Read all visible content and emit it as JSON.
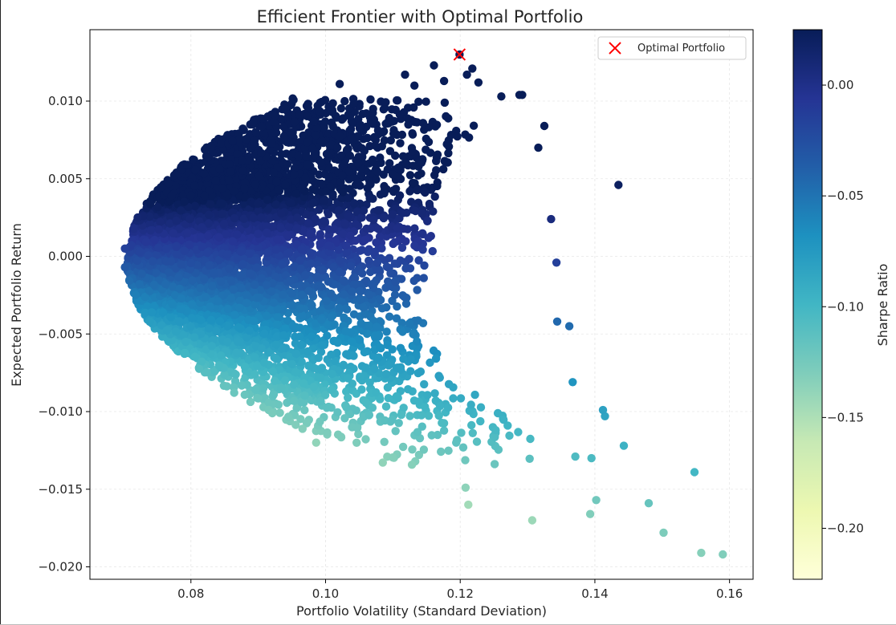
{
  "chart_data": {
    "type": "scatter",
    "title": "Efficient Frontier with Optimal Portfolio",
    "xlabel": "Portfolio Volatility (Standard Deviation)",
    "ylabel": "Expected Portfolio Return",
    "xlim": [
      0.065,
      0.1635
    ],
    "ylim": [
      -0.0208,
      0.0146
    ],
    "xticks": [
      0.08,
      0.1,
      0.12,
      0.14,
      0.16
    ],
    "xtick_labels": [
      "0.08",
      "0.10",
      "0.12",
      "0.14",
      "0.16"
    ],
    "yticks": [
      -0.02,
      -0.015,
      -0.01,
      -0.005,
      0.0,
      0.005,
      0.01
    ],
    "ytick_labels": [
      "−0.020",
      "−0.015",
      "−0.010",
      "−0.005",
      "0.000",
      "0.005",
      "0.010"
    ],
    "grid": true,
    "colorbar": {
      "label": "Sharpe Ratio",
      "range": [
        -0.223,
        0.025
      ],
      "ticks": [
        0.0,
        -0.05,
        -0.1,
        -0.15,
        -0.2
      ],
      "tick_labels": [
        "0.00",
        "−0.05",
        "−0.10",
        "−0.15",
        "−0.20"
      ],
      "colormap": "YlGnBu",
      "colors": [
        "#ffffd9",
        "#edf8b1",
        "#c7e9b4",
        "#7fcdbb",
        "#41b6c4",
        "#1d91c0",
        "#225ea8",
        "#253494",
        "#081d58"
      ]
    },
    "legend": {
      "position": "top-right",
      "entries": [
        {
          "label": "Optimal Portfolio",
          "marker": "x",
          "color": "#ff0000"
        }
      ]
    },
    "optimal_portfolio": {
      "x": 0.1199,
      "y": 0.013,
      "sharpe": 0.025
    },
    "cloud": {
      "count": 5200,
      "description_points_sample": "random portfolios colored by Sharpe ratio",
      "outliers": [
        {
          "x": 0.1435,
          "y": 0.0046
        },
        {
          "x": 0.159,
          "y": -0.0192
        },
        {
          "x": 0.1558,
          "y": -0.0191
        },
        {
          "x": 0.1548,
          "y": -0.0139
        },
        {
          "x": 0.1502,
          "y": -0.0178
        },
        {
          "x": 0.148,
          "y": -0.0159
        },
        {
          "x": 0.1443,
          "y": -0.0122
        },
        {
          "x": 0.1415,
          "y": -0.0103
        },
        {
          "x": 0.1412,
          "y": -0.0099
        },
        {
          "x": 0.1395,
          "y": -0.013
        },
        {
          "x": 0.1393,
          "y": -0.0166
        },
        {
          "x": 0.1402,
          "y": -0.0157
        },
        {
          "x": 0.1371,
          "y": -0.0129
        },
        {
          "x": 0.1362,
          "y": -0.0045
        },
        {
          "x": 0.1367,
          "y": -0.0081
        },
        {
          "x": 0.1344,
          "y": -0.0042
        },
        {
          "x": 0.1343,
          "y": -0.0004
        },
        {
          "x": 0.1335,
          "y": 0.0024
        },
        {
          "x": 0.1325,
          "y": 0.0084
        },
        {
          "x": 0.1316,
          "y": 0.007
        },
        {
          "x": 0.1307,
          "y": -0.017
        },
        {
          "x": 0.1261,
          "y": 0.0103
        },
        {
          "x": 0.1288,
          "y": 0.0104
        },
        {
          "x": 0.1292,
          "y": 0.0104
        },
        {
          "x": 0.1194,
          "y": -0.012
        },
        {
          "x": 0.1208,
          "y": -0.0149
        },
        {
          "x": 0.1212,
          "y": -0.016
        },
        {
          "x": 0.1177,
          "y": 0.0099
        },
        {
          "x": 0.1176,
          "y": 0.0113
        },
        {
          "x": 0.1161,
          "y": 0.0123
        },
        {
          "x": 0.1218,
          "y": 0.0121
        },
        {
          "x": 0.121,
          "y": 0.0117
        },
        {
          "x": 0.1227,
          "y": 0.0112
        },
        {
          "x": 0.1118,
          "y": 0.0117
        },
        {
          "x": 0.1132,
          "y": 0.011
        },
        {
          "x": 0.1021,
          "y": 0.0111
        },
        {
          "x": 0.0986,
          "y": -0.012
        },
        {
          "x": 0.0729,
          "y": 0.0026
        },
        {
          "x": 0.0721,
          "y": 0.0025
        },
        {
          "x": 0.0702,
          "y": 0.0005
        },
        {
          "x": 0.0702,
          "y": -0.0007
        }
      ]
    }
  }
}
